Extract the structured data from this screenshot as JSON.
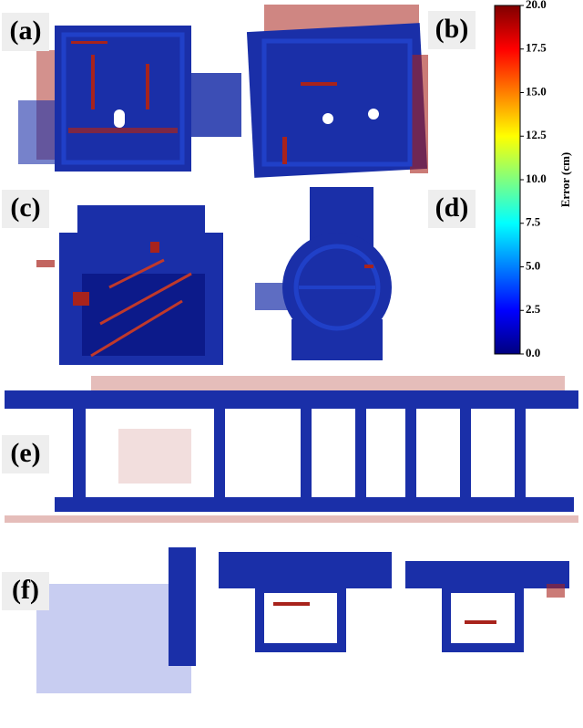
{
  "panels": [
    "(a)",
    "(b)",
    "(c)",
    "(d)",
    "(e)",
    "(f)"
  ],
  "colorbar": {
    "label": "Error (cm)",
    "lim": [
      0,
      20
    ],
    "ticks": [
      {
        "value": 0,
        "label": "0.0"
      },
      {
        "value": 2.5,
        "label": "2.5"
      },
      {
        "value": 5,
        "label": "5.0"
      },
      {
        "value": 7.5,
        "label": "7.5"
      },
      {
        "value": 10,
        "label": "10.0"
      },
      {
        "value": 12.5,
        "label": "12.5"
      },
      {
        "value": 15,
        "label": "15.0"
      },
      {
        "value": 17.5,
        "label": "17.5"
      },
      {
        "value": 20,
        "label": "20.0"
      }
    ]
  }
}
